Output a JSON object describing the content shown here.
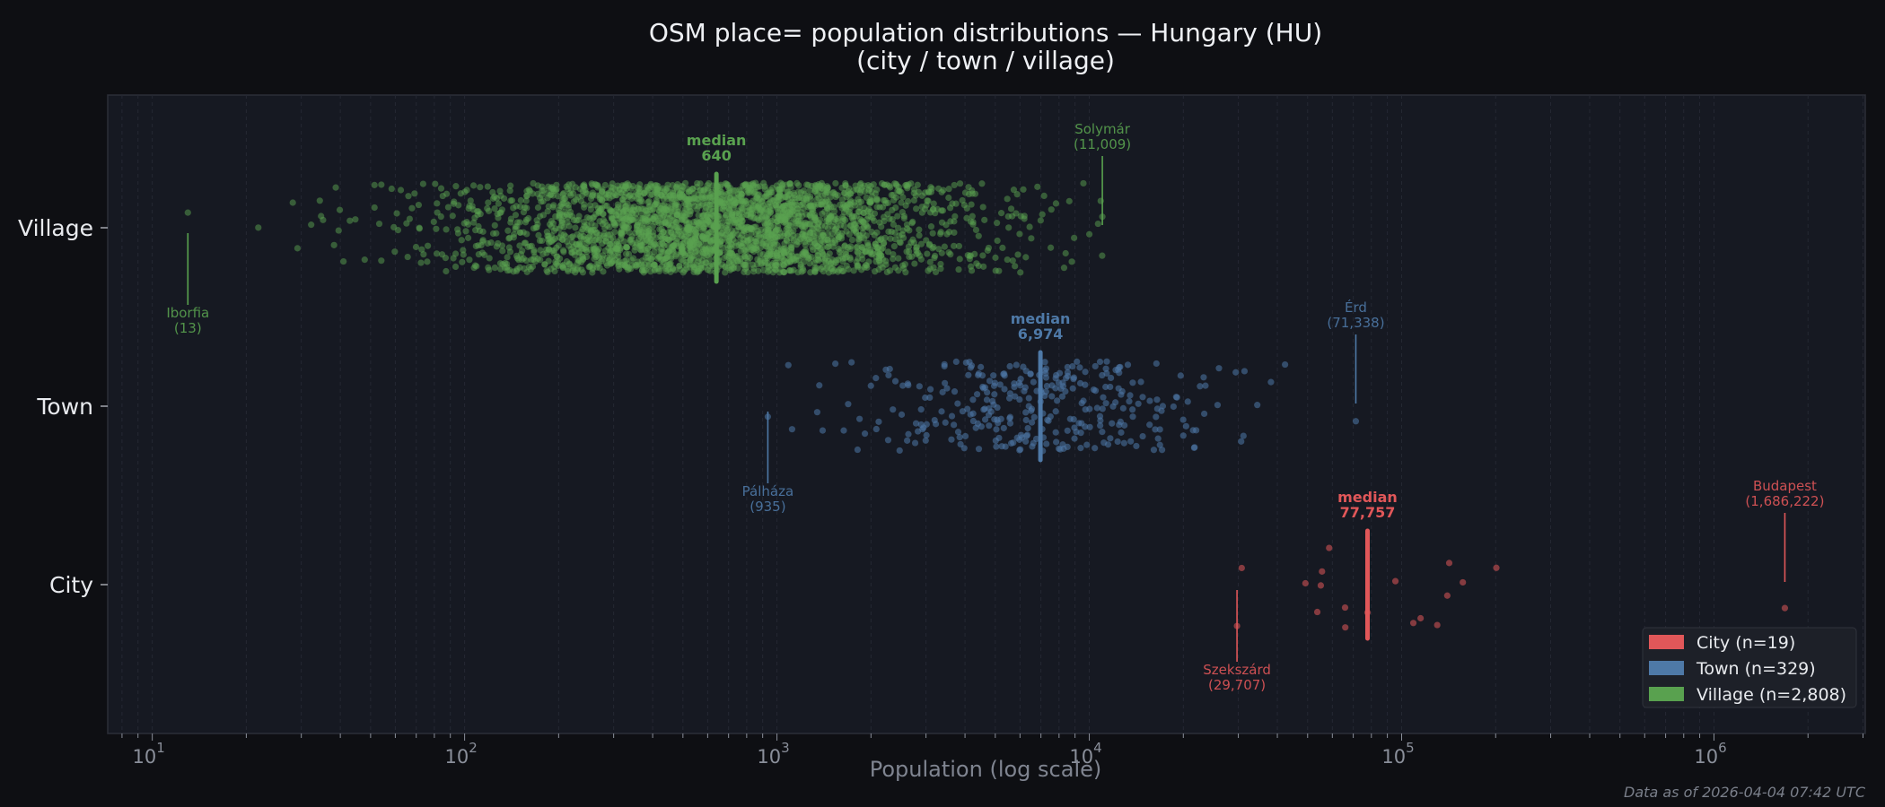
{
  "chart_data": {
    "type": "scatter",
    "title": "OSM place= population distributions — Hungary (HU)",
    "subtitle": "(city / town / village)",
    "xlabel": "Population (log scale)",
    "x_scale": "log",
    "xlim": [
      7.2,
      3050000
    ],
    "x_ticks": [
      {
        "base": "10",
        "exp": "1"
      },
      {
        "base": "10",
        "exp": "2"
      },
      {
        "base": "10",
        "exp": "3"
      },
      {
        "base": "10",
        "exp": "4"
      },
      {
        "base": "10",
        "exp": "5"
      },
      {
        "base": "10",
        "exp": "6"
      }
    ],
    "categories": [
      "City",
      "Town",
      "Village"
    ],
    "grid": "vertical minor, dashed",
    "legend_placement": "bottom-right",
    "series": [
      {
        "key": "city",
        "name": "City",
        "legend": "City  (n=19)",
        "color": "#e15759",
        "n": 19,
        "median": 77757,
        "median_label": "median",
        "median_value_label": "77,757",
        "min": 29707,
        "max": 1686222,
        "values": [
          29707,
          30760,
          49200,
          53700,
          55100,
          55600,
          58600,
          65900,
          66000,
          77757,
          95500,
          109000,
          115000,
          130000,
          140000,
          142000,
          157000,
          201000,
          1686222
        ],
        "annotations": [
          {
            "name": "Szekszárd",
            "value_label": "(29,707)",
            "value": 29707,
            "side": "below"
          },
          {
            "name": "Budapest",
            "value_label": "(1,686,222)",
            "value": 1686222,
            "side": "above"
          }
        ]
      },
      {
        "key": "town",
        "name": "Town",
        "legend": "Town  (n=329)",
        "color": "#4e79a7",
        "n": 329,
        "median": 6974,
        "median_label": "median",
        "median_value_label": "6,974",
        "min": 935,
        "max": 71338,
        "annotations": [
          {
            "name": "Pálháza",
            "value_label": "(935)",
            "value": 935,
            "side": "below"
          },
          {
            "name": "Érd",
            "value_label": "(71,338)",
            "value": 71338,
            "side": "above"
          }
        ]
      },
      {
        "key": "village",
        "name": "Village",
        "legend": "Village  (n=2,808)",
        "color": "#59a14f",
        "n": 2808,
        "median": 640,
        "median_label": "median",
        "median_value_label": "640",
        "min": 13,
        "max": 11009,
        "annotations": [
          {
            "name": "Iborfia",
            "value_label": "(13)",
            "value": 13,
            "side": "below"
          },
          {
            "name": "Solymár",
            "value_label": "(11,009)",
            "value": 11009,
            "side": "above"
          }
        ]
      }
    ]
  },
  "footer": "Data as of 2026-04-04 07:42 UTC"
}
